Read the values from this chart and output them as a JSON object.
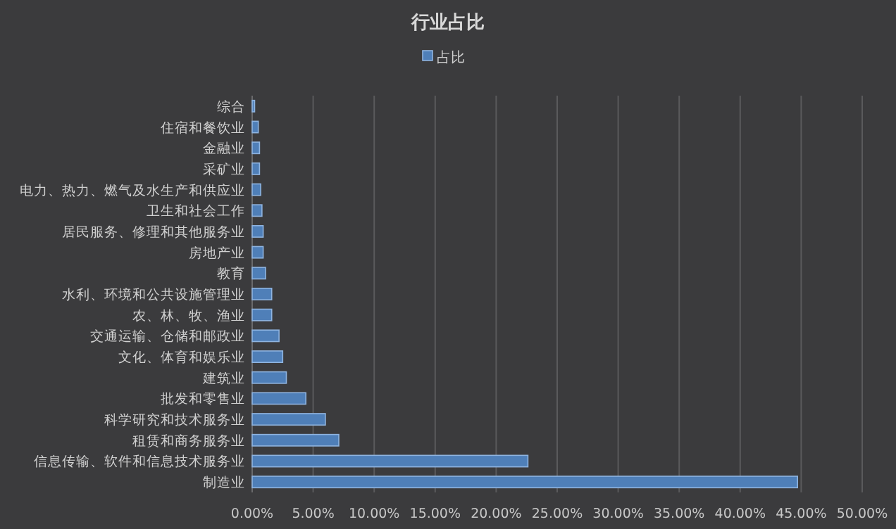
{
  "chart_data": {
    "type": "bar",
    "orientation": "horizontal",
    "title": "行业占比",
    "categories": [
      "综合",
      "住宿和餐饮业",
      "金融业",
      "采矿业",
      "电力、热力、燃气及水生产和供应业",
      "卫生和社会工作",
      "居民服务、修理和其他服务业",
      "房地产业",
      "教育",
      "水利、环境和公共设施管理业",
      "农、林、牧、渔业",
      "交通运输、仓储和邮政业",
      "文化、体育和娱乐业",
      "建筑业",
      "批发和零售业",
      "科学研究和技术服务业",
      "租赁和商务服务业",
      "信息传输、软件和信息技术服务业",
      "制造业"
    ],
    "series": [
      {
        "name": "占比",
        "color": "#4f7fb8",
        "values": [
          0.2,
          0.5,
          0.6,
          0.6,
          0.7,
          0.8,
          0.9,
          0.9,
          1.1,
          1.6,
          1.6,
          2.2,
          2.5,
          2.8,
          4.4,
          6.0,
          7.1,
          22.6,
          44.7
        ]
      }
    ],
    "xlim": [
      0,
      50
    ],
    "xticks": [
      {
        "value": 0,
        "label": "0.00%"
      },
      {
        "value": 5,
        "label": "5.00%"
      },
      {
        "value": 10,
        "label": "10.00%"
      },
      {
        "value": 15,
        "label": "15.00%"
      },
      {
        "value": 20,
        "label": "20.00%"
      },
      {
        "value": 25,
        "label": "25.00%"
      },
      {
        "value": 30,
        "label": "30.00%"
      },
      {
        "value": 35,
        "label": "35.00%"
      },
      {
        "value": 40,
        "label": "40.00%"
      },
      {
        "value": 45,
        "label": "45.00%"
      },
      {
        "value": 50,
        "label": "50.00%"
      }
    ],
    "grid": "x",
    "legend": "top"
  }
}
